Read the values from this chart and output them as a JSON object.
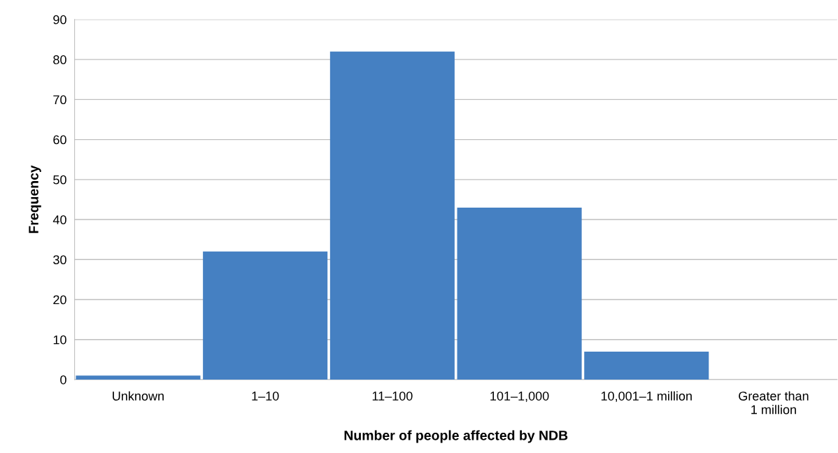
{
  "chart_data": {
    "type": "bar",
    "xlabel": "Number of people affected by NDB",
    "ylabel": "Frequency",
    "categories": [
      "Unknown",
      "1–10",
      "11–100",
      "101–1,000",
      "10,001–1 million",
      "Greater than\n1 million"
    ],
    "values": [
      1,
      32,
      82,
      43,
      7,
      0
    ],
    "color": "#4580c2",
    "ylim": [
      0,
      90
    ],
    "yticks": [
      0,
      10,
      20,
      30,
      40,
      50,
      60,
      70,
      80,
      90
    ],
    "grid": "y"
  }
}
